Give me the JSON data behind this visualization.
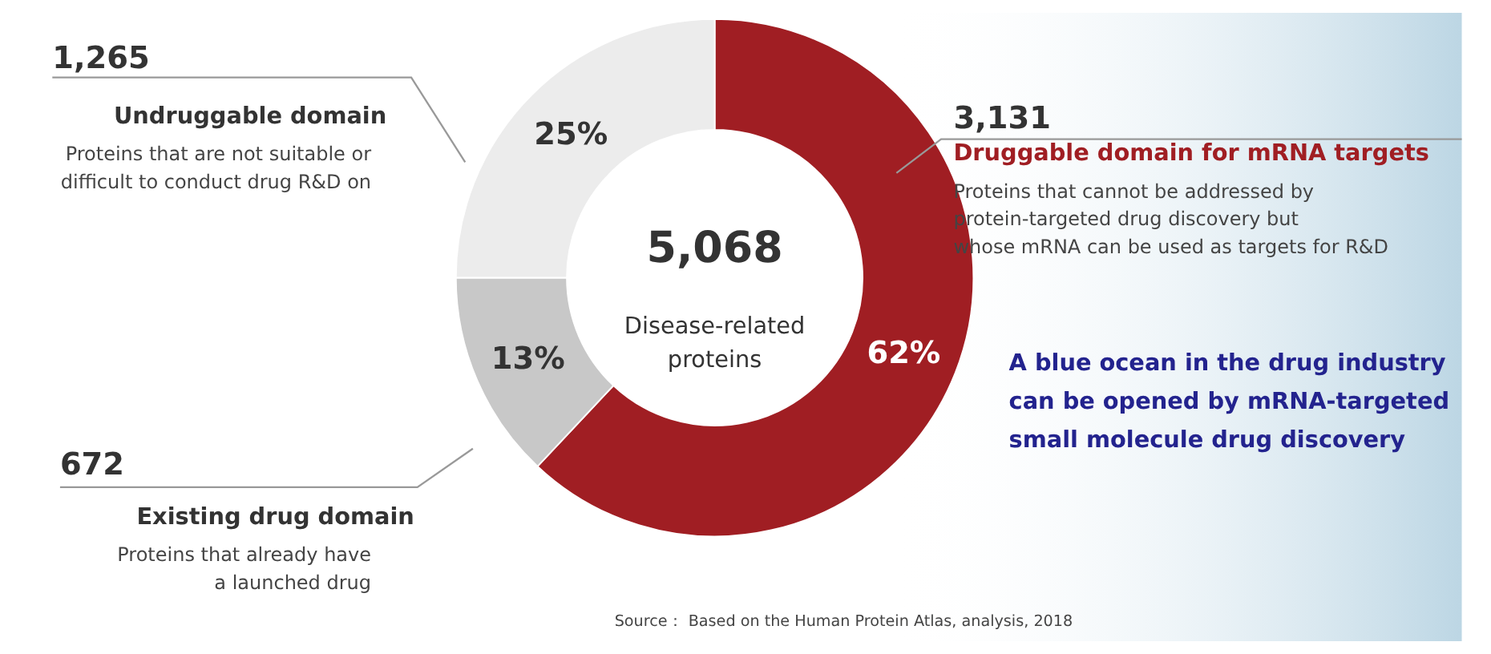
{
  "chart_data": {
    "type": "donut",
    "categories": [
      "Druggable domain for mRNA targets",
      "Existing drug domain",
      "Undruggable domain"
    ],
    "values": [
      62,
      13,
      25
    ],
    "colors": [
      "#a01e23",
      "#c8c8c8",
      "#ececec"
    ],
    "value_labels": [
      "62%",
      "13%",
      "25%"
    ],
    "annotations": [
      "Proteins that cannot be addressed by\nprotein-targeted drug discovery but\nwhose mRNA can be used as targets for R&D",
      "Proteins that already have\na launched drug",
      "Proteins that are not suitable or\ndifficult to conduct drug  R&D on",
      "3,131",
      "672",
      "1,265",
      "5,068",
      "Disease-related\nproteins",
      "A blue ocean in the drug industry\ncan be opened by mRNA-targeted\nsmall molecule drug discovery",
      "Source： Based on the Human Protein Atlas, analysis, 2018"
    ]
  }
}
